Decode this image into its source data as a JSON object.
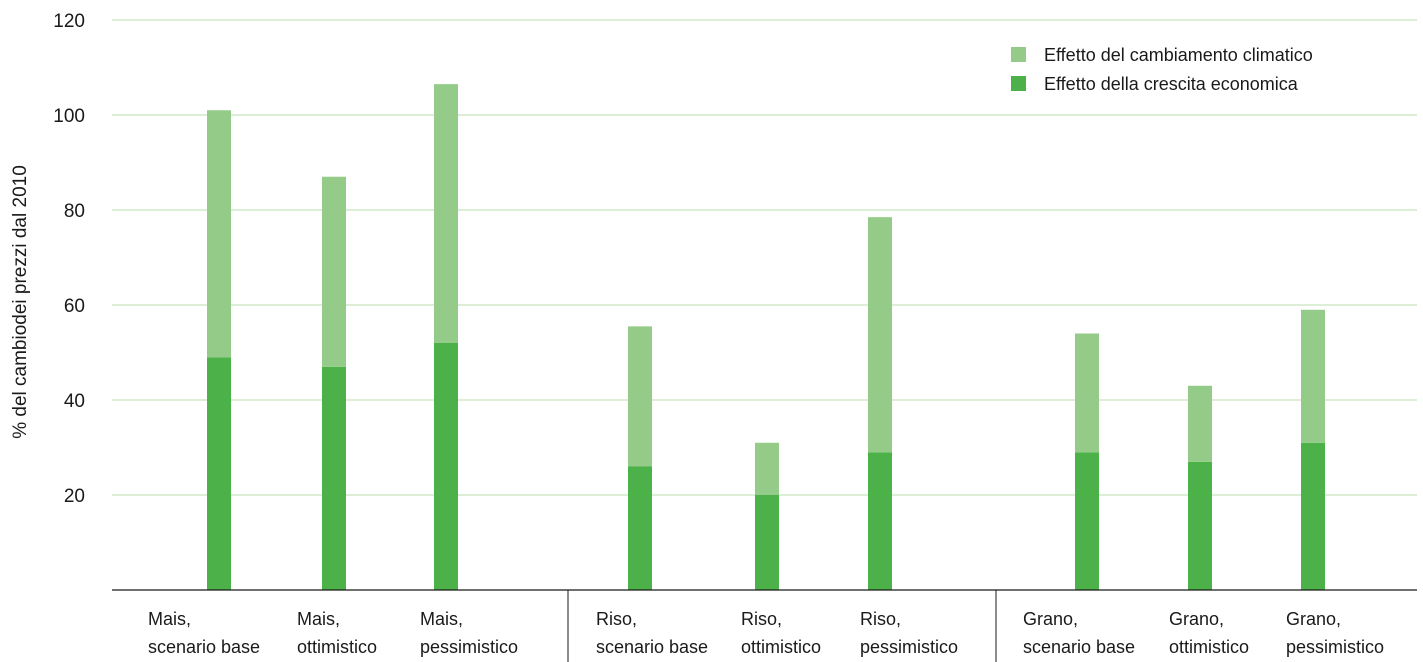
{
  "chart_data": {
    "type": "bar",
    "stacked": true,
    "title": "",
    "xlabel": "",
    "ylabel": "% del cambiodei prezzi dal 2010",
    "ylim": [
      0,
      120
    ],
    "yticks": [
      20,
      40,
      60,
      80,
      100,
      120
    ],
    "grid": true,
    "legend_position": "top-right",
    "groups": [
      "Mais",
      "Riso",
      "Grano"
    ],
    "categories": [
      [
        "Mais,",
        "scenario base"
      ],
      [
        "Mais,",
        "ottimistico"
      ],
      [
        "Mais,",
        "pessimistico"
      ],
      [
        "Riso,",
        "scenario base"
      ],
      [
        "Riso,",
        "ottimistico"
      ],
      [
        "Riso,",
        "pessimistico"
      ],
      [
        "Grano,",
        "scenario base"
      ],
      [
        "Grano,",
        "ottimistico"
      ],
      [
        "Grano,",
        "pessimistico"
      ]
    ],
    "series": [
      {
        "name": "Effetto della crescita economica",
        "color": "#4cb148",
        "values": [
          49,
          47,
          52,
          26,
          20,
          29,
          29,
          27,
          31
        ]
      },
      {
        "name": "Effetto del cambiamento climatico",
        "color": "#94cb88",
        "values": [
          52,
          40,
          54.5,
          29.5,
          11,
          49.5,
          25,
          16,
          28
        ]
      }
    ],
    "legend_order": [
      "Effetto del cambiamento climatico",
      "Effetto della crescita economica"
    ]
  }
}
